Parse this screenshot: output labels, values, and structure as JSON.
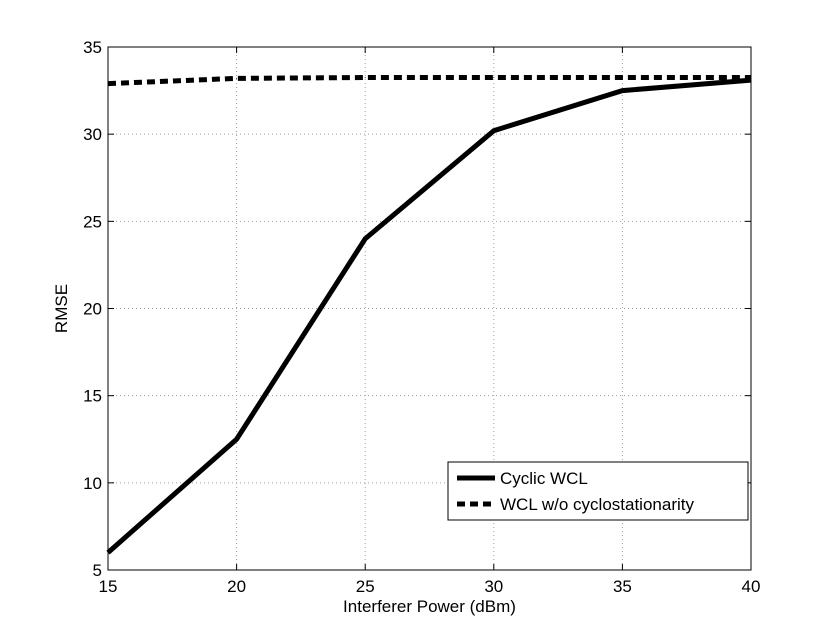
{
  "chart_data": {
    "type": "line",
    "title": "",
    "xlabel": "Interferer Power (dBm)",
    "ylabel": "RMSE",
    "xlim": [
      15,
      40
    ],
    "ylim": [
      5,
      35
    ],
    "xticks": [
      15,
      20,
      25,
      30,
      35,
      40
    ],
    "yticks": [
      5,
      10,
      15,
      20,
      25,
      30,
      35
    ],
    "grid": true,
    "legend_position": "bottom-right",
    "series": [
      {
        "name": "Cyclic WCL",
        "style": "solid",
        "color": "#000000",
        "x": [
          15,
          20,
          25,
          30,
          35,
          40
        ],
        "values": [
          6.0,
          12.5,
          24.0,
          30.2,
          32.5,
          33.1
        ]
      },
      {
        "name": "WCL w/o cyclostationarity",
        "style": "dashed",
        "color": "#000000",
        "x": [
          15,
          20,
          25,
          30,
          35,
          40
        ],
        "values": [
          32.9,
          33.2,
          33.25,
          33.25,
          33.25,
          33.25
        ]
      }
    ]
  }
}
